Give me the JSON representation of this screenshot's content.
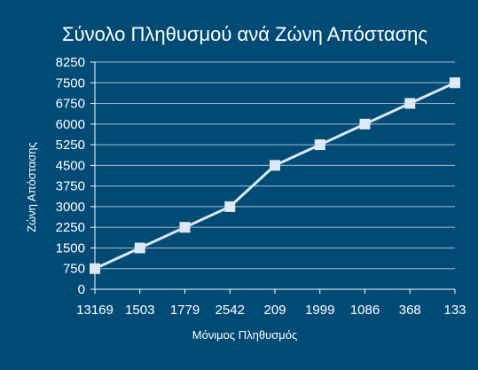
{
  "chart_data": {
    "type": "line",
    "title": "Σύνολο Πληθυσμού ανά Ζώνη Απόστασης",
    "xlabel": "Μόνιμος Πληθυσμός",
    "ylabel": "Ζώνη Απόστασης",
    "categories": [
      "13169",
      "1503",
      "1779",
      "2542",
      "209",
      "1999",
      "1086",
      "368",
      "133"
    ],
    "series": [
      {
        "values": [
          750,
          1500,
          2250,
          3000,
          4500,
          5250,
          6000,
          6750,
          7500
        ]
      }
    ],
    "ylim": [
      0,
      8250
    ],
    "yticks": [
      0,
      750,
      1500,
      2250,
      3000,
      3750,
      4500,
      5250,
      6000,
      6750,
      7500,
      8250
    ],
    "grid": true,
    "legend": "none",
    "colors": {
      "background": "#004b76",
      "plot_background": "#004b76",
      "gridline": "#a8bccb",
      "axis": "#ffffff",
      "line": "#dce9f5",
      "marker": "#dce9f5",
      "text": "#ffffff"
    }
  }
}
